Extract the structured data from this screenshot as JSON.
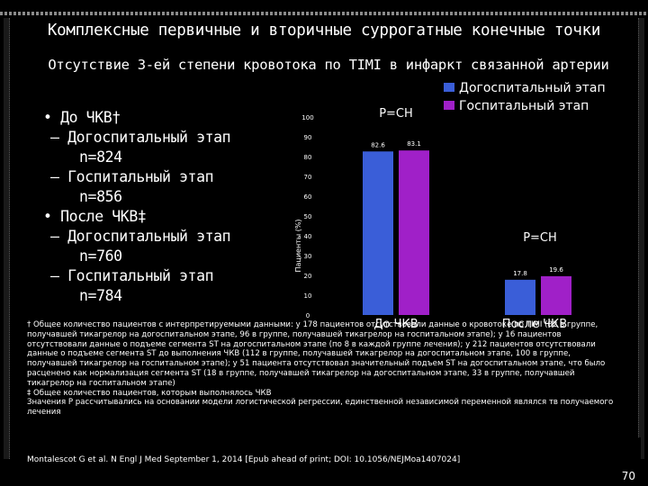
{
  "title": "Комплексные первичные и вторичные суррогатные конечные точки",
  "subtitle": "Отсутствие 3-ей степени кровотока по TIMI в инфаркт связанной артерии",
  "bullets": {
    "b1": "• До ЧКВ†",
    "b1_1": "– Догоспитальный этап",
    "b1_1n": "n=824",
    "b1_2": "– Госпитальный этап",
    "b1_2n": "n=856",
    "b2": "• После ЧКВ‡",
    "b2_1": "– Догоспитальный этап",
    "b2_1n": "n=760",
    "b2_2": "– Госпитальный этап",
    "b2_2n": "n=784"
  },
  "chart_data": {
    "type": "bar",
    "ylabel": "Пациенты (%)",
    "ylim": [
      0,
      100
    ],
    "yticks": [
      "0",
      "10",
      "20",
      "30",
      "40",
      "50",
      "60",
      "70",
      "80",
      "90",
      "100"
    ],
    "categories": [
      "До ЧКВ",
      "После ЧКВ"
    ],
    "series": [
      {
        "name": "Догоспитальный этап",
        "values": [
          82.6,
          17.8
        ],
        "labels": [
          "82.6",
          "17.8"
        ],
        "color": "#3a5ed8"
      },
      {
        "name": "Госпитальный этап",
        "values": [
          83.1,
          19.6
        ],
        "labels": [
          "83.1",
          "19.6"
        ],
        "color": "#a020c8"
      }
    ],
    "annotations": [
      "P=CH",
      "P=CH"
    ],
    "legend": "top-right"
  },
  "notes": {
    "n1": "† Общее количество пациентов с интерпретируемыми данными: у 178 пациентов отсутствовали данные о кровотоке по TIMI (82 в группе, получавшей тикагрелор на догоспитальном этапе, 96 в группе, получавшей тикагрелор на госпитальном этапе); у 16 пациентов отсутствовали данные о подъеме сегмента ST на догоспитальном этапе (по 8 в каждой группе лечения); у 212 пациентов отсутствовали данные о подъеме сегмента ST до выполнения ЧКВ (112 в группе, получавшей тикагрелор на догоспитальном этапе, 100 в группе, получавшей тикагрелор на госпитальном этапе); у 51 пациента отсутствовал значительный подъем ST на догоспитальном этапе, что было расценено как нормализация сегмента ST (18 в группе, получавшей тикагрелор на догоспитальном этапе, 33 в группе, получавшей тикагрелор на госпитальном этапе)",
    "n2": "‡ Общее количество пациентов, которым выполнялось ЧКВ",
    "n3": "Значения P рассчитывались на основании модели логистической регрессии, единственной независимой переменной являлся тв получаемого лечения"
  },
  "source": "Montalescot G et al. N Engl J Med September 1, 2014 [Epub ahead of print; DOI: 10.1056/NEJMoa1407024]",
  "page_number": "70"
}
